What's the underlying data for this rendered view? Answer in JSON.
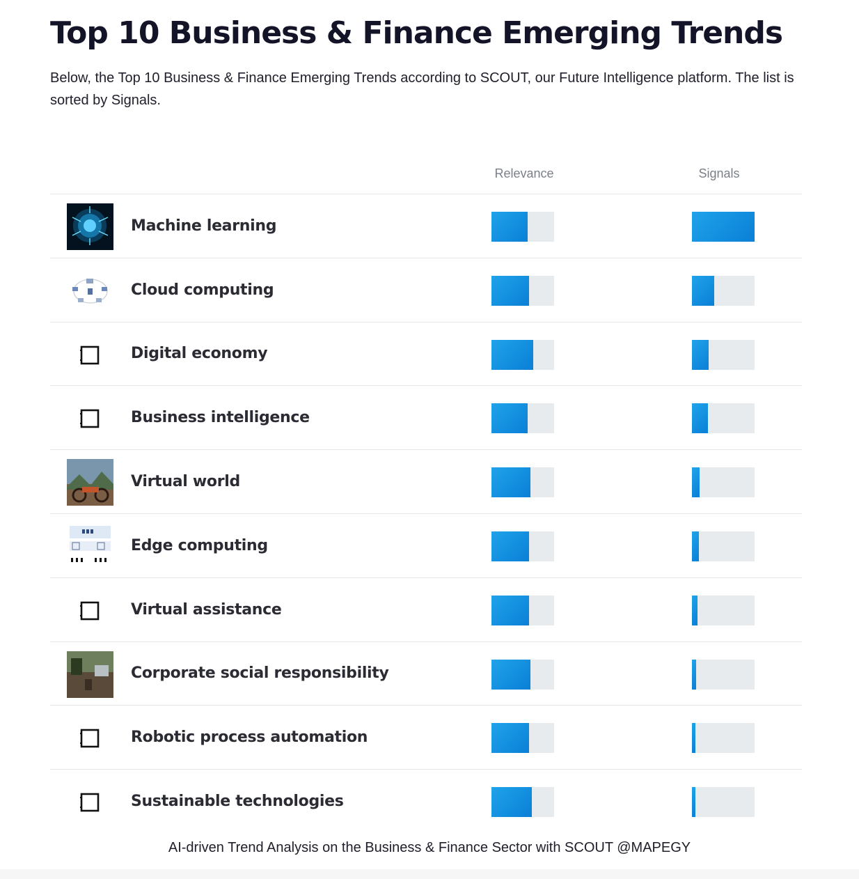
{
  "header": {
    "title": "Top 10 Business & Finance Emerging Trends",
    "subtitle": "Below, the Top 10 Business & Finance Emerging Trends according to SCOUT, our Future Intelligence platform. The list is sorted by Signals."
  },
  "footer": {
    "text": "AI-driven Trend Analysis on the Business & Finance Sector with SCOUT @MAPEGY"
  },
  "colors": {
    "bar_fill": "#0a8ee0",
    "bar_track": "#e8ebee",
    "divider": "#e3e5e8"
  },
  "chart_data": {
    "type": "bar",
    "columns": [
      "Relevance",
      "Signals"
    ],
    "scale": "fraction of full bar (0–1)",
    "rows": [
      {
        "name": "Machine learning",
        "icon": "brain-circuit-image",
        "relevance": 0.58,
        "signals": 1.0
      },
      {
        "name": "Cloud computing",
        "icon": "cloud-diagram-image",
        "relevance": 0.6,
        "signals": 0.35
      },
      {
        "name": "Digital economy",
        "icon": "placeholder-square-icon",
        "relevance": 0.67,
        "signals": 0.27
      },
      {
        "name": "Business intelligence",
        "icon": "placeholder-square-icon",
        "relevance": 0.58,
        "signals": 0.26
      },
      {
        "name": "Virtual world",
        "icon": "virtual-world-image",
        "relevance": 0.62,
        "signals": 0.12
      },
      {
        "name": "Edge computing",
        "icon": "edge-diagram-image",
        "relevance": 0.6,
        "signals": 0.11
      },
      {
        "name": "Virtual assistance",
        "icon": "placeholder-square-icon",
        "relevance": 0.6,
        "signals": 0.09
      },
      {
        "name": "Corporate social responsibility",
        "icon": "photo-image",
        "relevance": 0.62,
        "signals": 0.07
      },
      {
        "name": "Robotic process automation",
        "icon": "placeholder-square-icon",
        "relevance": 0.6,
        "signals": 0.05
      },
      {
        "name": "Sustainable technologies",
        "icon": "placeholder-square-icon",
        "relevance": 0.64,
        "signals": 0.05
      }
    ]
  }
}
